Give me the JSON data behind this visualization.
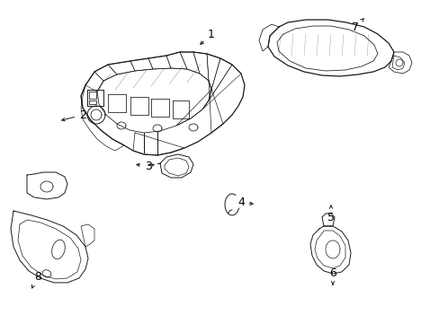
{
  "background_color": "#ffffff",
  "line_color": "#1a1a1a",
  "label_color": "#000000",
  "figsize": [
    4.89,
    3.6
  ],
  "dpi": 100,
  "lw": 0.7
}
